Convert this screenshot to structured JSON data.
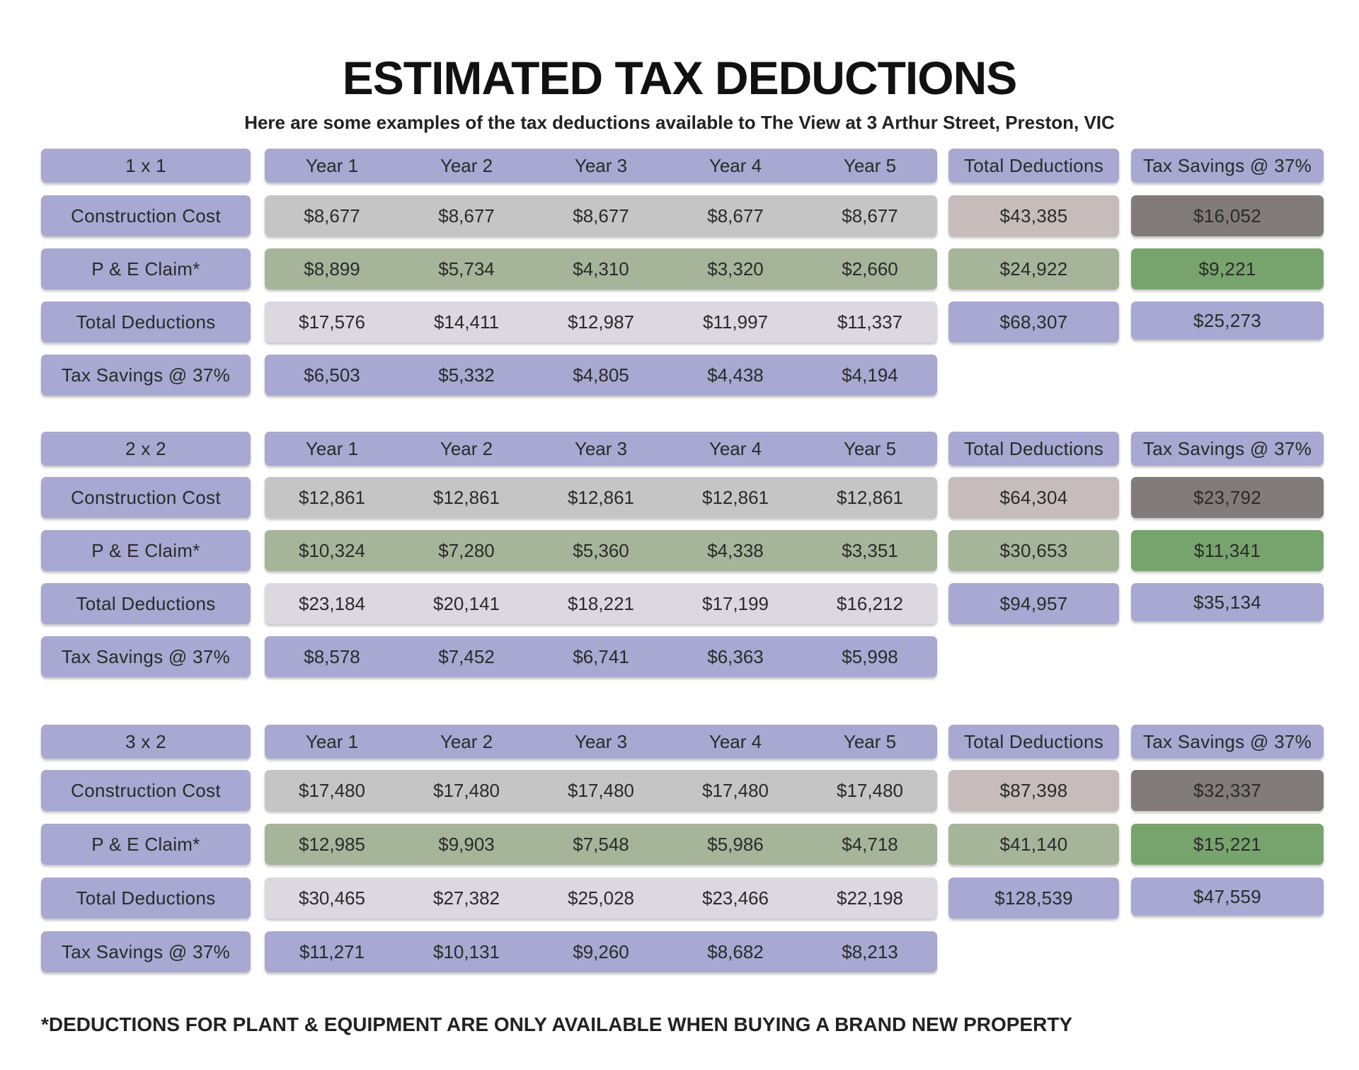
{
  "title": "ESTIMATED TAX DEDUCTIONS",
  "subtitle": "Here are some examples of the tax deductions available to The View at 3 Arthur Street, Preston, VIC",
  "footnote": "*DEDUCTIONS FOR PLANT & EQUIPMENT ARE ONLY AVAILABLE WHEN BUYING A BRAND NEW PROPERTY",
  "header_labels": {
    "years": [
      "Year 1",
      "Year 2",
      "Year 3",
      "Year 4",
      "Year 5"
    ],
    "total_deductions": "Total Deductions",
    "tax_savings": "Tax Savings @ 37%"
  },
  "row_labels": {
    "construction_cost": "Construction Cost",
    "pe_claim": "P & E Claim*",
    "total_deductions": "Total Deductions",
    "tax_savings": "Tax Savings @ 37%"
  },
  "colors": {
    "label": "#a8a8d2",
    "construction_cost": "#c5c5c5",
    "pe_claim": "#a6b59a",
    "total_deductions": "#dcd8df",
    "tax_savings": "#a8a8d2",
    "total_construction": "#c6bcbb",
    "savings_construction": "#827b7b",
    "savings_pe": "#77a46d"
  },
  "tables": [
    {
      "unit": "1 x 1",
      "construction_cost": {
        "years": [
          "$8,677",
          "$8,677",
          "$8,677",
          "$8,677",
          "$8,677"
        ],
        "total": "$43,385",
        "savings": "$16,052"
      },
      "pe_claim": {
        "years": [
          "$8,899",
          "$5,734",
          "$4,310",
          "$3,320",
          "$2,660"
        ],
        "total": "$24,922",
        "savings": "$9,221"
      },
      "total_deductions": {
        "years": [
          "$17,576",
          "$14,411",
          "$12,987",
          "$11,997",
          "$11,337"
        ],
        "total": "$68,307",
        "savings": "$25,273"
      },
      "tax_savings": {
        "years": [
          "$6,503",
          "$5,332",
          "$4,805",
          "$4,438",
          "$4,194"
        ]
      }
    },
    {
      "unit": "2 x 2",
      "construction_cost": {
        "years": [
          "$12,861",
          "$12,861",
          "$12,861",
          "$12,861",
          "$12,861"
        ],
        "total": "$64,304",
        "savings": "$23,792"
      },
      "pe_claim": {
        "years": [
          "$10,324",
          "$7,280",
          "$5,360",
          "$4,338",
          "$3,351"
        ],
        "total": "$30,653",
        "savings": "$11,341"
      },
      "total_deductions": {
        "years": [
          "$23,184",
          "$20,141",
          "$18,221",
          "$17,199",
          "$16,212"
        ],
        "total": "$94,957",
        "savings": "$35,134"
      },
      "tax_savings": {
        "years": [
          "$8,578",
          "$7,452",
          "$6,741",
          "$6,363",
          "$5,998"
        ]
      }
    },
    {
      "unit": "3 x 2",
      "construction_cost": {
        "years": [
          "$17,480",
          "$17,480",
          "$17,480",
          "$17,480",
          "$17,480"
        ],
        "total": "$87,398",
        "savings": "$32,337"
      },
      "pe_claim": {
        "years": [
          "$12,985",
          "$9,903",
          "$7,548",
          "$5,986",
          "$4,718"
        ],
        "total": "$41,140",
        "savings": "$15,221"
      },
      "total_deductions": {
        "years": [
          "$30,465",
          "$27,382",
          "$25,028",
          "$23,466",
          "$22,198"
        ],
        "total": "$128,539",
        "savings": "$47,559"
      },
      "tax_savings": {
        "years": [
          "$11,271",
          "$10,131",
          "$9,260",
          "$8,682",
          "$8,213"
        ]
      }
    }
  ]
}
